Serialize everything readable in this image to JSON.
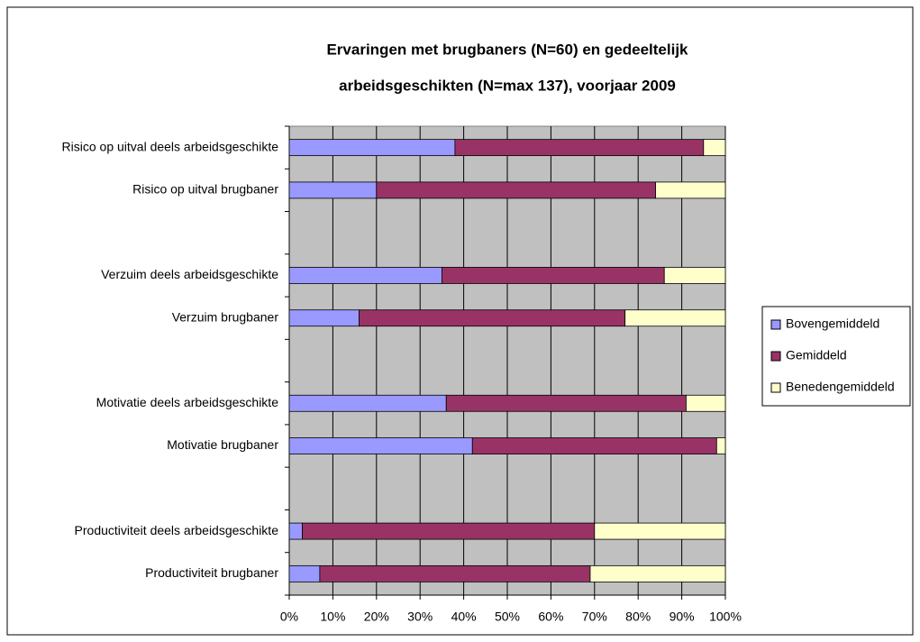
{
  "chart_data": {
    "type": "stacked-bar-horizontal",
    "title": [
      "Ervaringen met brugbaners (N=60) en gedeeltelijk",
      "arbeidsgeschikten (N=max 137), voorjaar 2009"
    ],
    "categories": [
      "Risico op uitval deels arbeidsgeschikte",
      "Risico op uitval brugbaner",
      null,
      "Verzuim deels arbeidsgeschikte",
      "Verzuim brugbaner",
      null,
      "Motivatie deels arbeidsgeschikte",
      "Motivatie brugbaner",
      null,
      "Productiviteit deels arbeidsgeschikte",
      "Productiviteit brugbaner"
    ],
    "series": [
      {
        "name": "Bovengemiddeld",
        "color": "#9999ff",
        "values": [
          38,
          20,
          null,
          35,
          16,
          null,
          36,
          42,
          null,
          3,
          7
        ]
      },
      {
        "name": "Gemiddeld",
        "color": "#993366",
        "values": [
          57,
          64,
          null,
          51,
          61,
          null,
          55,
          56,
          null,
          67,
          62
        ]
      },
      {
        "name": "Benedengemiddeld",
        "color": "#ffffcc",
        "values": [
          5,
          16,
          null,
          14,
          23,
          null,
          9,
          2,
          null,
          30,
          31
        ]
      }
    ],
    "xlim": [
      0,
      100
    ],
    "xticks": [
      {
        "value": 0,
        "label": "0%"
      },
      {
        "value": 10,
        "label": "10%"
      },
      {
        "value": 20,
        "label": "20%"
      },
      {
        "value": 30,
        "label": "30%"
      },
      {
        "value": 40,
        "label": "40%"
      },
      {
        "value": 50,
        "label": "50%"
      },
      {
        "value": 60,
        "label": "60%"
      },
      {
        "value": 70,
        "label": "70%"
      },
      {
        "value": 80,
        "label": "80%"
      },
      {
        "value": 90,
        "label": "90%"
      },
      {
        "value": 100,
        "label": "100%"
      }
    ],
    "grid": true,
    "legend": "right",
    "plot_background": "#c0c0c0"
  }
}
